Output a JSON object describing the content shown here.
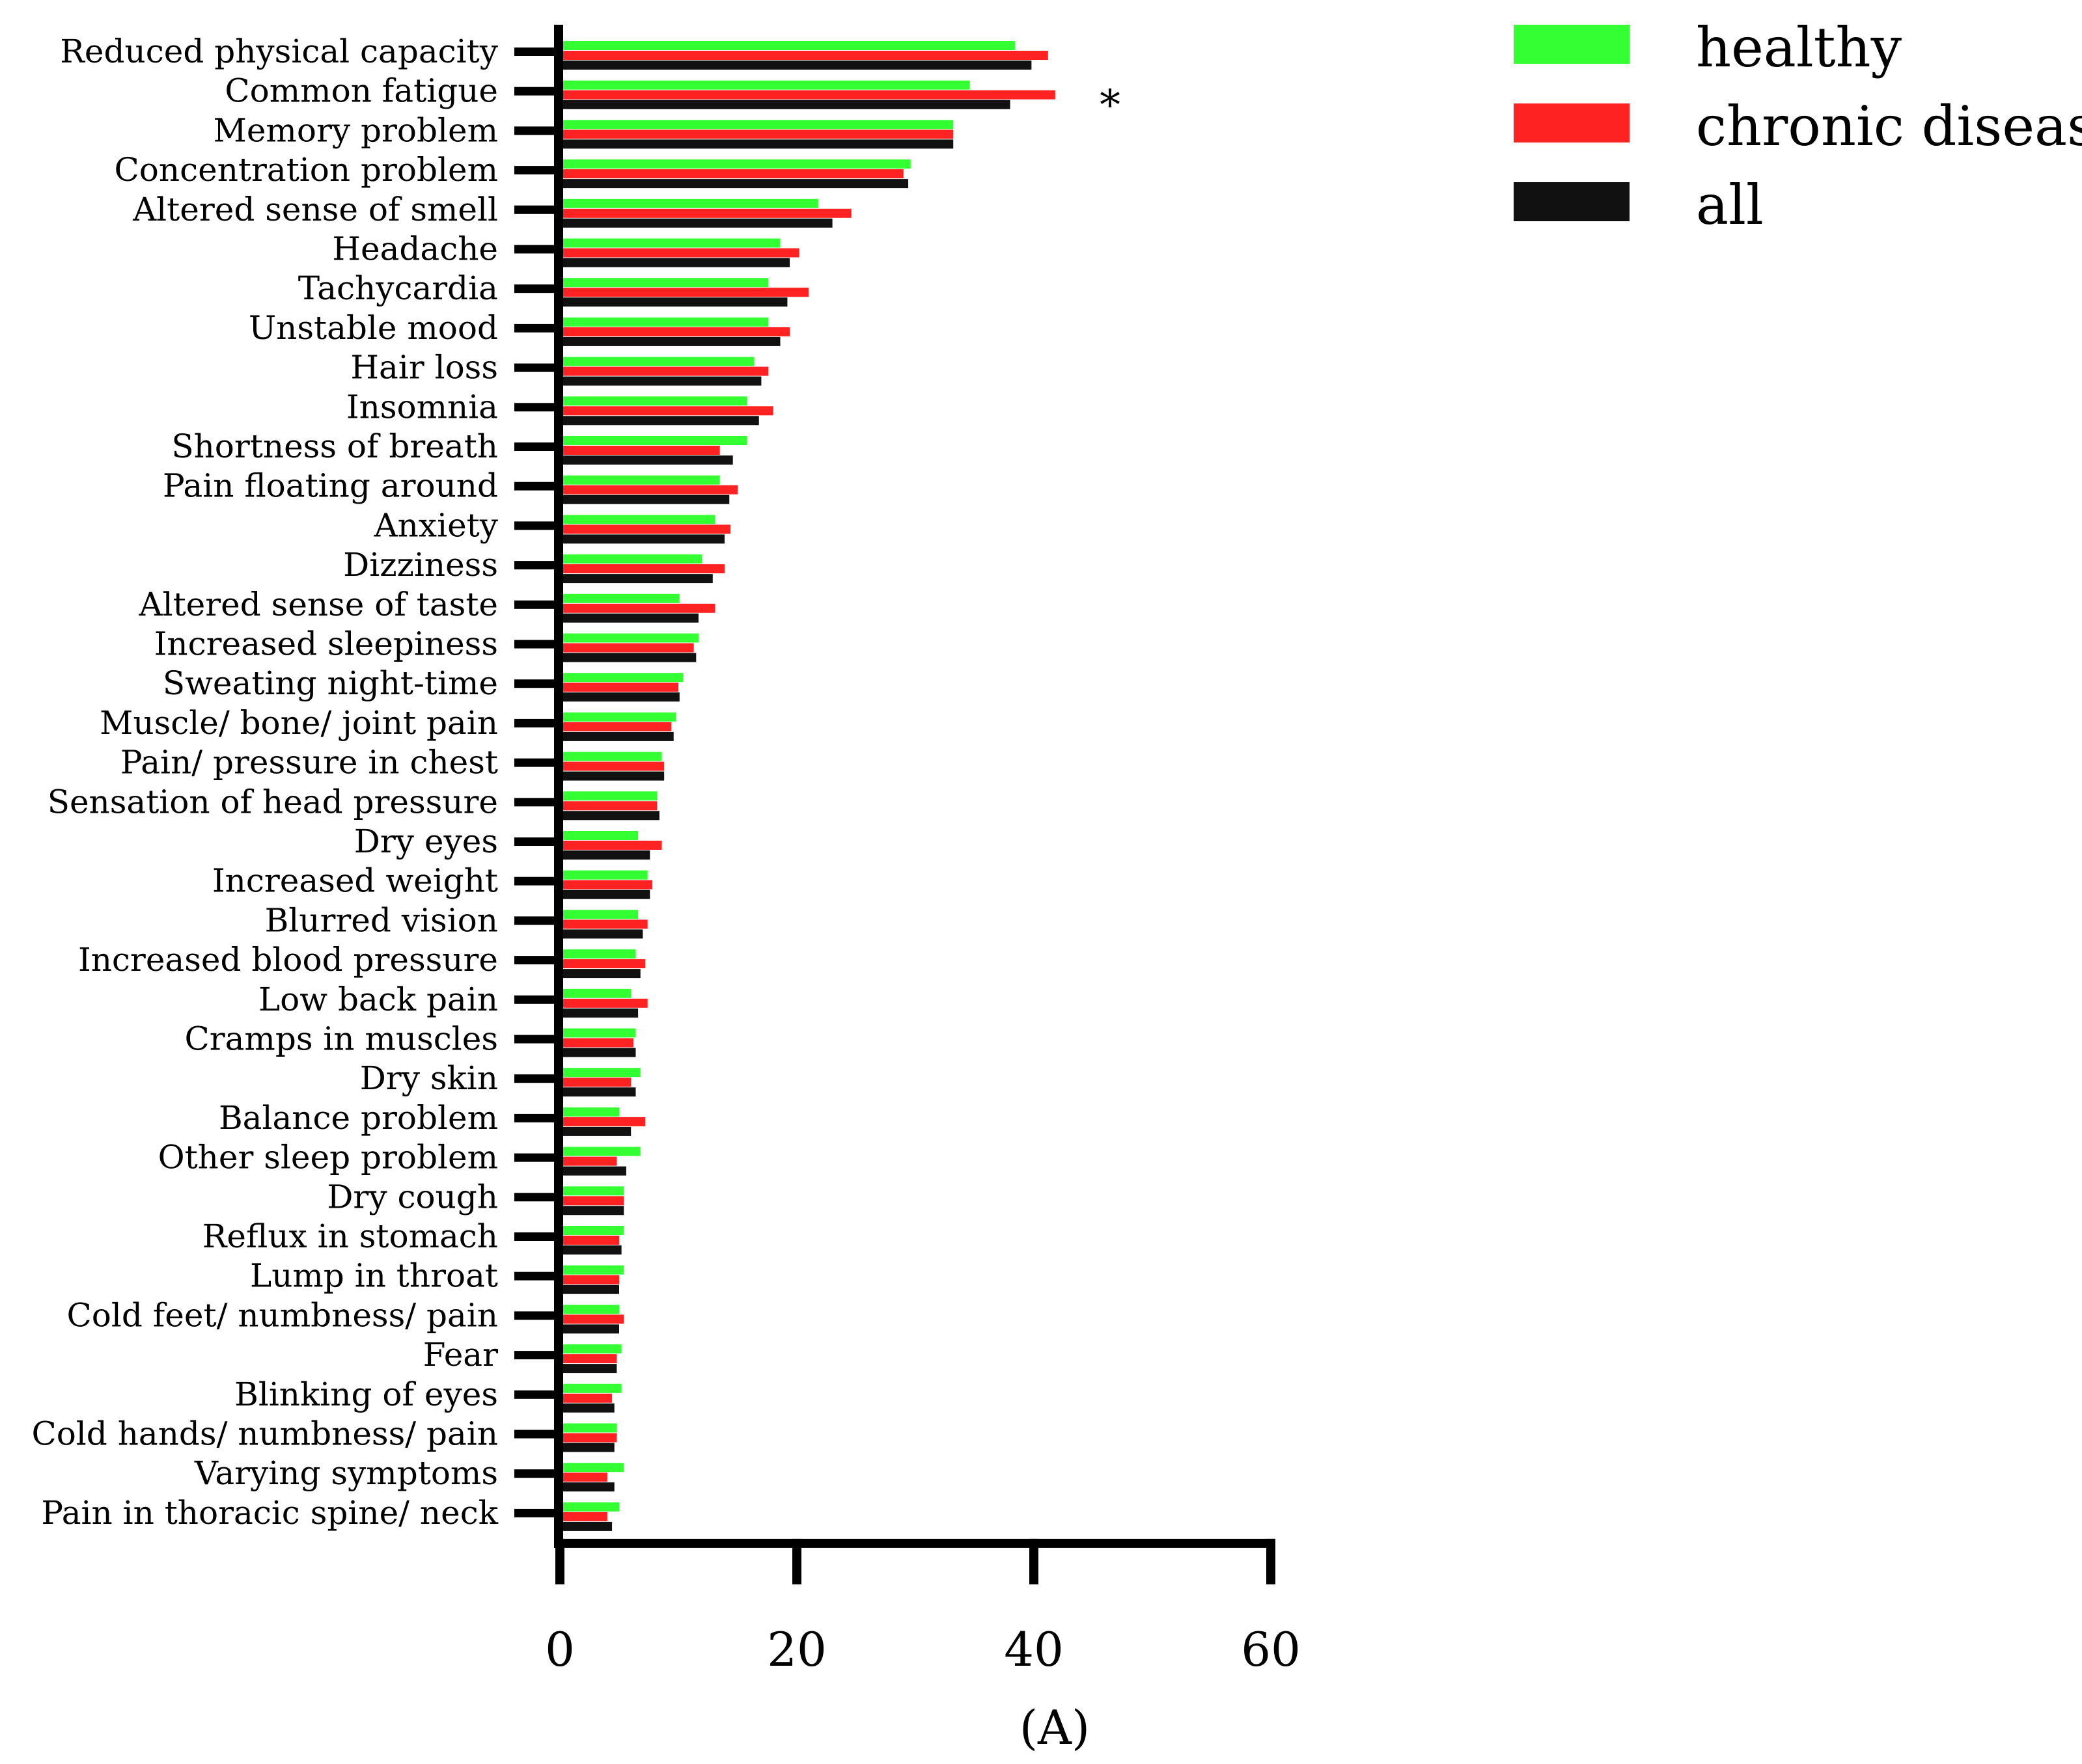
{
  "chart_data": {
    "type": "bar",
    "orientation": "horizontal",
    "categories": [
      "Reduced physical capacity",
      "Common fatigue",
      "Memory problem",
      "Concentration problem",
      "Altered sense of smell",
      "Headache",
      "Tachycardia",
      "Unstable mood",
      "Hair loss",
      "Insomnia",
      "Shortness of breath",
      "Pain floating around",
      "Anxiety",
      "Dizziness",
      "Altered sense of taste",
      "Increased sleepiness",
      "Sweating night-time",
      "Muscle/ bone/ joint pain",
      "Pain/ pressure in chest",
      "Sensation of head pressure",
      "Dry eyes",
      "Increased weight",
      "Blurred vision",
      "Increased blood pressure",
      "Low back pain",
      "Cramps in muscles",
      "Dry skin",
      "Balance problem",
      "Other sleep problem",
      "Dry cough",
      "Reflux in stomach",
      "Lump in throat",
      "Cold feet/ numbness/ pain",
      "Fear",
      "Blinking of eyes",
      "Cold hands/ numbness/ pain",
      "Varying symptoms",
      "Pain in thoracic spine/ neck"
    ],
    "series": [
      {
        "name": "healthy",
        "color": "#33ff33",
        "values": [
          38.4,
          34.6,
          33.2,
          29.6,
          21.8,
          18.6,
          17.6,
          17.6,
          16.4,
          15.8,
          15.8,
          13.5,
          13.1,
          12.0,
          10.1,
          11.7,
          10.4,
          9.8,
          8.6,
          8.2,
          6.6,
          7.4,
          6.6,
          6.4,
          6.0,
          6.4,
          6.8,
          5.0,
          6.8,
          5.4,
          5.4,
          5.4,
          5.0,
          5.2,
          5.2,
          4.8,
          5.4,
          5.0
        ]
      },
      {
        "name": "chronic disease",
        "color": "#ff2222",
        "values": [
          41.2,
          41.8,
          33.2,
          29.0,
          24.6,
          20.2,
          21.0,
          19.4,
          17.6,
          18.0,
          13.5,
          15.0,
          14.4,
          13.9,
          13.1,
          11.3,
          10.0,
          9.4,
          8.8,
          8.2,
          8.6,
          7.8,
          7.4,
          7.2,
          7.4,
          6.2,
          6.0,
          7.2,
          4.8,
          5.4,
          5.0,
          5.0,
          5.4,
          4.8,
          4.4,
          4.8,
          4.0,
          4.0
        ]
      },
      {
        "name": "all",
        "color": "#111111",
        "values": [
          39.8,
          38.0,
          33.2,
          29.4,
          23.0,
          19.4,
          19.2,
          18.6,
          17.0,
          16.8,
          14.6,
          14.3,
          13.9,
          12.9,
          11.7,
          11.5,
          10.1,
          9.6,
          8.8,
          8.4,
          7.6,
          7.6,
          7.0,
          6.8,
          6.6,
          6.4,
          6.4,
          6.0,
          5.6,
          5.4,
          5.2,
          5.0,
          5.0,
          4.8,
          4.6,
          4.6,
          4.6,
          4.4
        ]
      }
    ],
    "annotations": [
      {
        "category": "Common fatigue",
        "text": "*"
      }
    ],
    "xlim": [
      0,
      60
    ],
    "xticks": [
      "0",
      "20",
      "40",
      "60"
    ],
    "xlabel": "",
    "ylabel": "",
    "panel_label": "(A)",
    "legend_position": "top-right",
    "grid": false
  }
}
